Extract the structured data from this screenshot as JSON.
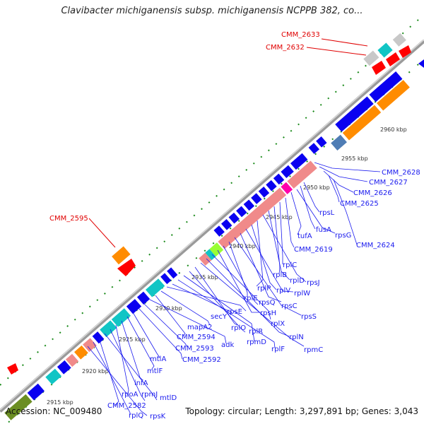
{
  "title": "Clavibacter michiganensis subsp. michiganensis NCPPB 382, co...",
  "footer": {
    "accession": "Accession: NC_009480",
    "summary": "Topology: circular; Length: 3,297,891 bp; Genes: 3,043"
  },
  "colors": {
    "backbone": "#9a9a9a",
    "cds": "#0a00f0",
    "rrna": "#ff8c00",
    "rna_pink": "#f08a8a",
    "cyan": "#11c5c5",
    "steel": "#4f7db5",
    "lime": "#99ff33",
    "magenta": "#ff00aa",
    "red": "#ff0000",
    "gray": "#c8c8c8",
    "olive": "#6b8e23",
    "dots": "#1a8a1a",
    "label_blue": "#1a1aee",
    "label_red": "#e00000"
  },
  "ticks": [
    "2915 kbp",
    "2920 kbp",
    "2925 kbp",
    "2930 kbp",
    "2935 kbp",
    "2940 kbp",
    "2945 kbp",
    "2950 kbp",
    "2955 kbp",
    "2960 kbp"
  ],
  "labels_red": [
    "CMM_2633",
    "CMM_2632",
    "CMM_2595"
  ],
  "labels_blue": [
    "CMM_2628",
    "CMM_2627",
    "CMM_2626",
    "CMM_2625",
    "CMM_2624",
    "rpsL",
    "fusA",
    "rpsG",
    "tufA",
    "CMM_2619",
    "rplC",
    "rplB",
    "rplD",
    "rpsJ",
    "rplP",
    "rplV",
    "rplW",
    "rpsC",
    "rpsS",
    "rplE",
    "rpsQ",
    "rpsH",
    "rplX",
    "rplN",
    "rpmC",
    "rplO",
    "rplR",
    "rpmD",
    "rplF",
    "secY",
    "rpsE",
    "mapA2",
    "CMM_2594",
    "adk",
    "CMM_2593",
    "CMM_2592",
    "mtlA",
    "mtlF",
    "infA",
    "rpoA",
    "rpmJ",
    "mtlD",
    "CMM_2582",
    "rplQ",
    "rpsK"
  ]
}
